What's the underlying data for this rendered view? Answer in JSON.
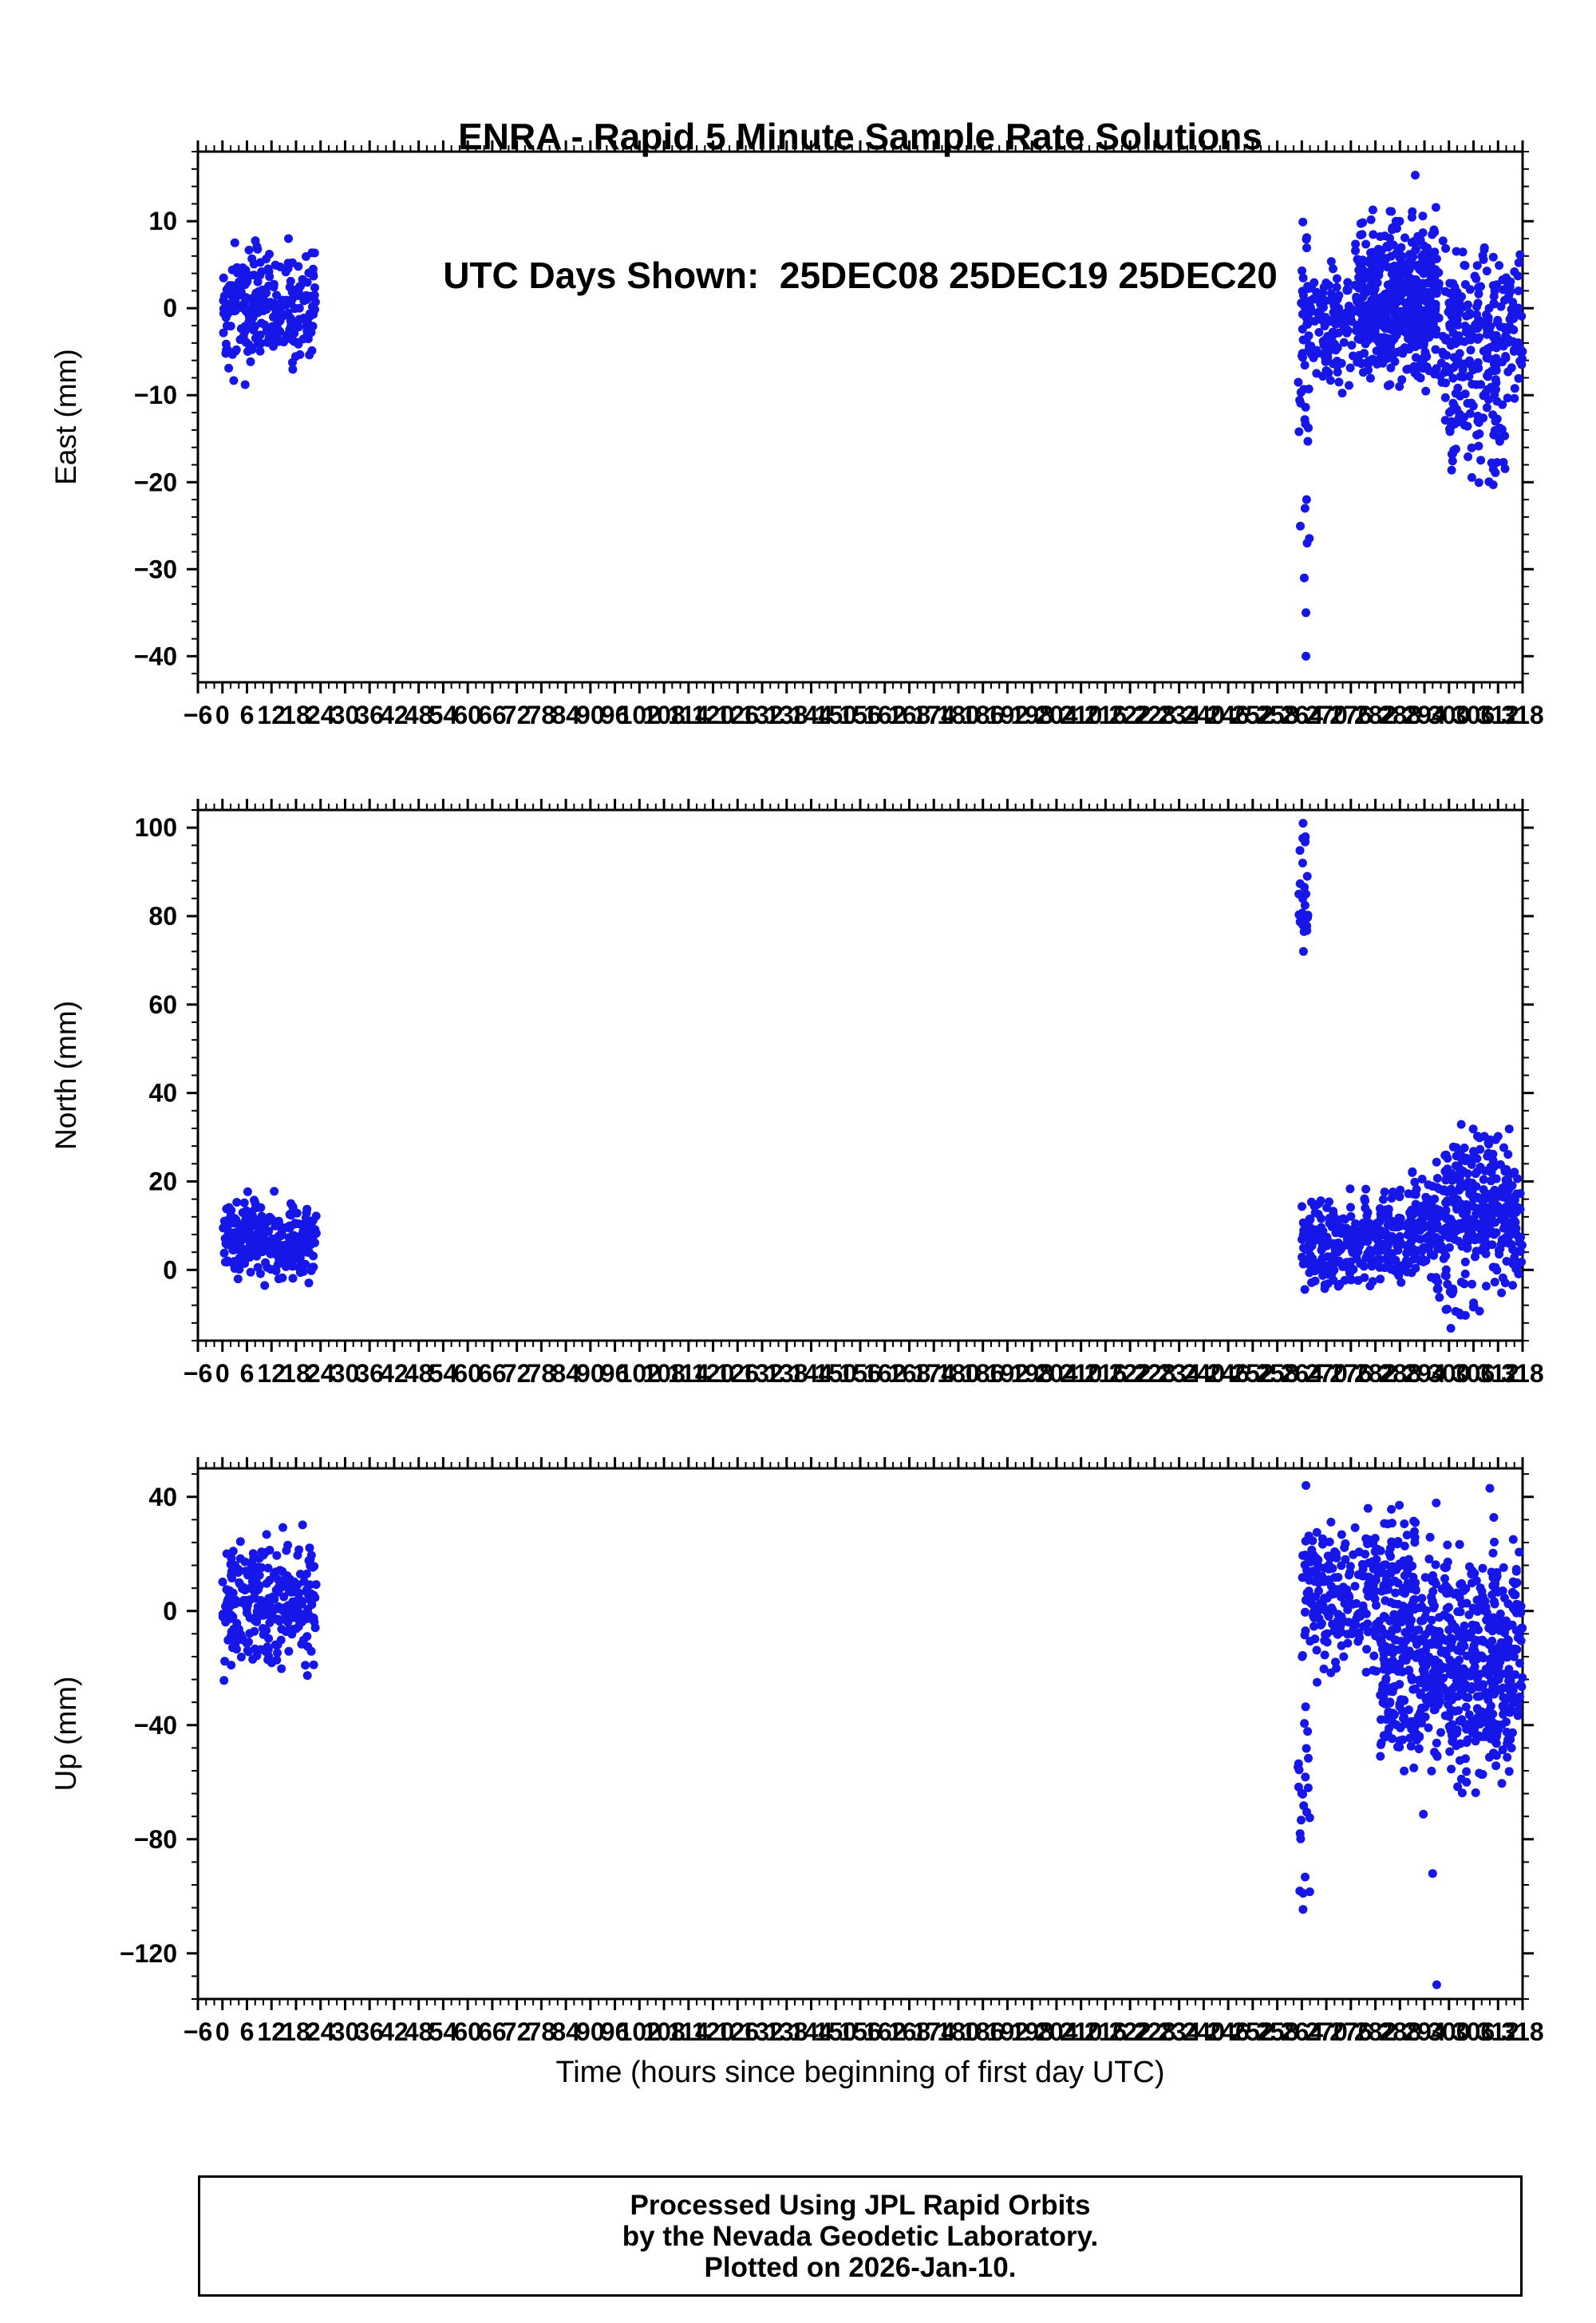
{
  "title": {
    "line1": "ENRA - Rapid 5 Minute Sample Rate Solutions",
    "line2": "UTC Days Shown:  25DEC08 25DEC19 25DEC20"
  },
  "xlabel": "Time (hours since beginning of first day UTC)",
  "footer": {
    "line1": "Processed Using JPL Rapid Orbits",
    "line2": "by the Nevada Geodetic Laboratory.",
    "line3": "Plotted on 2026-Jan-10."
  },
  "point_color": "#1616E8",
  "chart_data": [
    {
      "name": "east",
      "type": "scatter",
      "ylabel": "East (mm)",
      "x_unit": "hours",
      "xlim": [
        -6,
        318
      ],
      "ylim": [
        -43,
        18
      ],
      "xtick_step": 6,
      "xminor_step": 2,
      "ytick_min": -40,
      "ytick_max": 10,
      "ytick_step": 10,
      "yminor_step": 2,
      "clusters": [
        {
          "x": [
            0,
            23
          ],
          "n": 270,
          "mean": 0,
          "sd": 3.2,
          "range": [
            -9.5,
            8.5
          ]
        },
        {
          "x": [
            263,
            266
          ],
          "n": 26,
          "mean": -13,
          "sd": 13,
          "range": [
            -41,
            15
          ]
        },
        {
          "x": [
            264,
            292
          ],
          "n": 330,
          "mean": -2,
          "sd": 3.4,
          "range": [
            -12,
            9
          ]
        },
        {
          "x": [
            277,
            297
          ],
          "n": 230,
          "mean": 3.5,
          "sd": 4.2,
          "range": [
            -5,
            17.5
          ]
        },
        {
          "x": [
            291,
            318
          ],
          "n": 310,
          "mean": -2.5,
          "sd": 4.2,
          "range": [
            -13,
            8
          ]
        },
        {
          "x": [
            299,
            314
          ],
          "n": 80,
          "mean": -12,
          "sd": 4.5,
          "range": [
            -21,
            -3
          ]
        }
      ],
      "outliers": [
        [
          265,
          -40
        ],
        [
          265,
          -35
        ],
        [
          264.6,
          -31
        ],
        [
          265.3,
          -27
        ],
        [
          264.8,
          -23
        ]
      ]
    },
    {
      "name": "north",
      "type": "scatter",
      "ylabel": "North (mm)",
      "x_unit": "hours",
      "xlim": [
        -6,
        318
      ],
      "ylim": [
        -16,
        104
      ],
      "xtick_step": 6,
      "xminor_step": 2,
      "ytick_min": 0,
      "ytick_max": 100,
      "ytick_step": 20,
      "yminor_step": 4,
      "clusters": [
        {
          "x": [
            0,
            23
          ],
          "n": 270,
          "mean": 7,
          "sd": 4.5,
          "range": [
            -5.5,
            21
          ]
        },
        {
          "x": [
            263,
            265.5
          ],
          "n": 20,
          "mean": 88,
          "sd": 10,
          "range": [
            72,
            101
          ]
        },
        {
          "x": [
            264,
            292
          ],
          "n": 330,
          "mean": 7,
          "sd": 5,
          "range": [
            -5,
            22
          ]
        },
        {
          "x": [
            291,
            318
          ],
          "n": 320,
          "mean": 10,
          "sd": 6,
          "range": [
            -7,
            27
          ]
        },
        {
          "x": [
            299,
            315
          ],
          "n": 100,
          "mean": 22,
          "sd": 6.5,
          "range": [
            6,
            34
          ]
        },
        {
          "x": [
            297,
            308
          ],
          "n": 22,
          "mean": -7,
          "sd": 4,
          "range": [
            -14,
            1
          ]
        }
      ],
      "outliers": [
        [
          264.3,
          101
        ],
        [
          264.8,
          97
        ],
        [
          264.2,
          92
        ],
        [
          265,
          85
        ],
        [
          264.6,
          78
        ],
        [
          264.4,
          72
        ]
      ]
    },
    {
      "name": "up",
      "type": "scatter",
      "ylabel": "Up (mm)",
      "x_unit": "hours",
      "xlim": [
        -6,
        318
      ],
      "ylim": [
        -136,
        50
      ],
      "xtick_step": 6,
      "xminor_step": 2,
      "ytick_min": -120,
      "ytick_max": 40,
      "ytick_step": 40,
      "yminor_step": 8,
      "clusters": [
        {
          "x": [
            0,
            23
          ],
          "n": 270,
          "mean": 2,
          "sd": 11,
          "range": [
            -26,
            31
          ]
        },
        {
          "x": [
            263,
            266
          ],
          "n": 24,
          "mean": -68,
          "sd": 22,
          "range": [
            -106,
            -28
          ]
        },
        {
          "x": [
            264,
            292
          ],
          "n": 330,
          "mean": 5,
          "sd": 13,
          "range": [
            -36,
            46
          ]
        },
        {
          "x": [
            283,
            298
          ],
          "n": 170,
          "mean": -28,
          "sd": 14,
          "range": [
            -73,
            6
          ]
        },
        {
          "x": [
            293,
            318
          ],
          "n": 330,
          "mean": -10,
          "sd": 15,
          "range": [
            -56,
            43
          ]
        },
        {
          "x": [
            300,
            316
          ],
          "n": 130,
          "mean": -36,
          "sd": 14,
          "range": [
            -73,
            -1
          ]
        }
      ],
      "outliers": [
        [
          297,
          -131
        ],
        [
          296,
          -92
        ],
        [
          265,
          44
        ],
        [
          310,
          43
        ]
      ]
    }
  ]
}
